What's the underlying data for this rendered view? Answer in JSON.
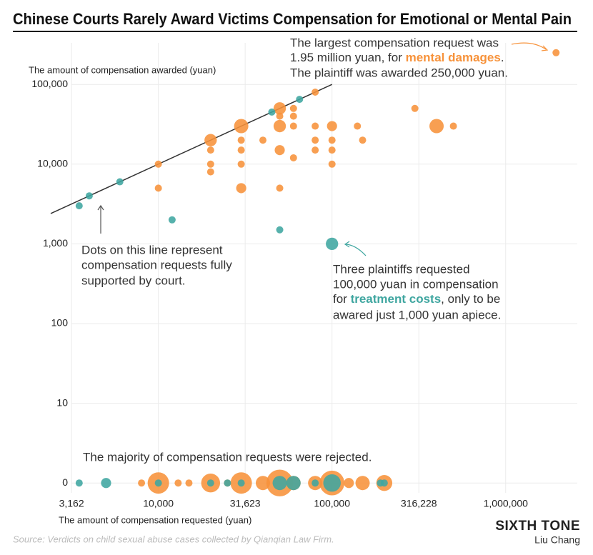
{
  "chart_data": {
    "type": "scatter",
    "title": "Chinese Courts Rarely Award Victims Compensation for Emotional or Mental Pain",
    "ylabel": "The amount of compensation awarded (yuan)",
    "xlabel": "The amount of compensation requested (yuan)",
    "source": "Source: Verdicts on child sexual abuse cases collected by Qianqian Law Firm.",
    "brand": "SIXTH TONE",
    "author": "Liu Chang",
    "log_x": true,
    "log_y": true,
    "grid": true,
    "xlim": [
      2400,
      2200000
    ],
    "ylim": [
      0,
      400000
    ],
    "xticks": [
      {
        "value": 3162.28,
        "label": "3,162"
      },
      {
        "value": 10000,
        "label": "10,000"
      },
      {
        "value": 31622.78,
        "label": "31,623"
      },
      {
        "value": 100000,
        "label": "100,000"
      },
      {
        "value": 316227.77,
        "label": "316,228"
      },
      {
        "value": 1000000,
        "label": "1,000,000"
      }
    ],
    "yticks": [
      0,
      10,
      100,
      {
        "value": 1000,
        "label": "1,000"
      },
      {
        "value": 10000,
        "label": "10,000"
      },
      {
        "value": 100000,
        "label": "100,000"
      }
    ],
    "annotations": [
      {
        "lines": [
          "The largest compensation request was",
          "1.95 million yuan, for ",
          ".",
          "The plaintiff was awarded 250,000 yuan."
        ]
      },
      {
        "lines": [
          "Dots on this line represent",
          "compensation requests fully",
          "supported by court."
        ]
      },
      {
        "lines": [
          "Three plaintiffs requested",
          "100,000 yuan in compensation",
          "for ",
          ", only to be",
          "awared just 1,000 yuan apiece."
        ]
      },
      {
        "lines": [
          "The majority of compensation requests were rejected."
        ]
      }
    ],
    "series": [
      {
        "name": "mental damages",
        "color": "#f7923a",
        "x": [
          10000,
          10000,
          20000,
          20000,
          20000,
          20000,
          30000,
          30000,
          30000,
          30000,
          30000,
          40000,
          50000,
          50000,
          50000,
          50000,
          50000,
          60000,
          60000,
          60000,
          60000,
          80000,
          80000,
          80000,
          80000,
          100000,
          100000,
          100000,
          100000,
          140000,
          150000,
          300000,
          400000,
          500000,
          1950000,
          8000,
          10000,
          13000,
          15000,
          20000,
          25000,
          30000,
          40000,
          50000,
          60000,
          80000,
          100000,
          125000,
          150000,
          200000
        ],
        "values": [
          10000,
          5000,
          20000,
          15000,
          10000,
          8000,
          30000,
          20000,
          15000,
          10000,
          5000,
          20000,
          50000,
          30000,
          15000,
          5000,
          40000,
          50000,
          40000,
          30000,
          12000,
          80000,
          30000,
          20000,
          15000,
          30000,
          20000,
          15000,
          10000,
          30000,
          20000,
          50000,
          30000,
          30000,
          250000,
          0,
          0,
          0,
          0,
          0,
          0,
          0,
          0,
          0,
          0,
          0,
          0,
          0,
          0,
          0
        ],
        "sizes": [
          1,
          1,
          3,
          1,
          1,
          1,
          4,
          1,
          1,
          1,
          2,
          1,
          3,
          3,
          2,
          1,
          1,
          1,
          1,
          1,
          1,
          1,
          1,
          1,
          1,
          2,
          1,
          1,
          1,
          1,
          1,
          1,
          4,
          1,
          1,
          1,
          9,
          1,
          1,
          7,
          1,
          9,
          4,
          14,
          4,
          4,
          12,
          2,
          4,
          5
        ]
      },
      {
        "name": "treatment costs",
        "color": "#3fa6a0",
        "x": [
          3500,
          4000,
          6000,
          12000,
          50000,
          100000,
          65000,
          45000,
          3500,
          5000,
          10000,
          20000,
          25000,
          30000,
          50000,
          60000,
          80000,
          100000,
          190000,
          200000
        ],
        "values": [
          3000,
          4000,
          6000,
          2000,
          1500,
          1000,
          65000,
          45000,
          0,
          0,
          0,
          0,
          0,
          0,
          0,
          0,
          0,
          0,
          0,
          0
        ],
        "sizes": [
          1,
          1,
          1,
          1,
          1,
          3,
          1,
          1,
          1,
          2,
          1,
          1,
          1,
          1,
          4,
          4,
          1,
          6,
          1,
          1
        ]
      }
    ]
  }
}
